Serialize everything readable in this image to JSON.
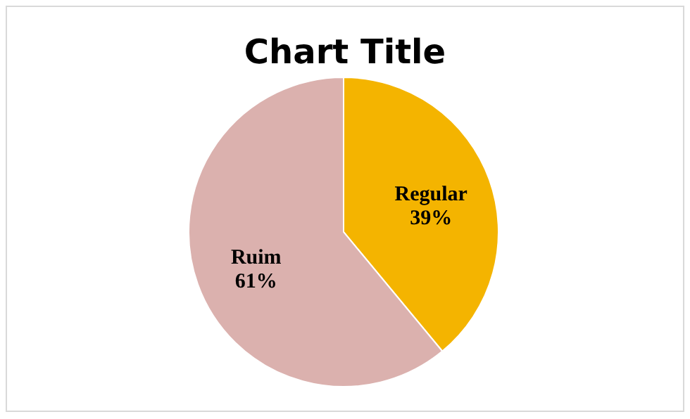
{
  "chart_data": {
    "type": "pie",
    "title": "Chart Title",
    "categories": [
      "Ruim",
      "Regular"
    ],
    "values": [
      61,
      39
    ],
    "colors": [
      "#dbb1ae",
      "#f4b400"
    ],
    "value_labels": [
      "61%",
      "39%"
    ]
  }
}
